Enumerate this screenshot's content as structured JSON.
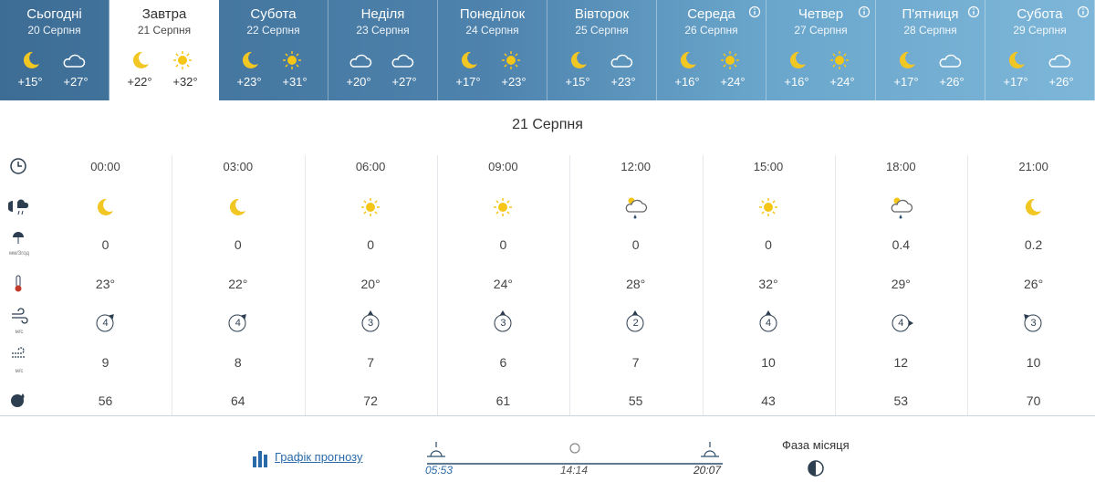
{
  "days": [
    {
      "name": "Сьогодні",
      "date": "20 Серпня",
      "night": "+15°",
      "day": "+27°"
    },
    {
      "name": "Завтра",
      "date": "21 Серпня",
      "night": "+22°",
      "day": "+32°"
    },
    {
      "name": "Субота",
      "date": "22 Серпня",
      "night": "+23°",
      "day": "+31°"
    },
    {
      "name": "Неділя",
      "date": "23 Серпня",
      "night": "+20°",
      "day": "+27°"
    },
    {
      "name": "Понеділок",
      "date": "24 Серпня",
      "night": "+17°",
      "day": "+23°"
    },
    {
      "name": "Вівторок",
      "date": "25 Серпня",
      "night": "+15°",
      "day": "+23°"
    },
    {
      "name": "Середа",
      "date": "26 Серпня",
      "night": "+16°",
      "day": "+24°"
    },
    {
      "name": "Четвер",
      "date": "27 Серпня",
      "night": "+16°",
      "day": "+24°"
    },
    {
      "name": "П'ятниця",
      "date": "28 Серпня",
      "night": "+17°",
      "day": "+26°"
    },
    {
      "name": "Субота",
      "date": "29 Серпня",
      "night": "+17°",
      "day": "+26°"
    }
  ],
  "selected_date": "21 Серпня",
  "row_units": {
    "precipitation": "мм/3год",
    "wind": "м/с",
    "gust": "м/с"
  },
  "hours": [
    {
      "time": "00:00",
      "precipitation": "0",
      "temperature": "23°",
      "wind": "4",
      "gust": "9",
      "humidity": "56"
    },
    {
      "time": "03:00",
      "precipitation": "0",
      "temperature": "22°",
      "wind": "4",
      "gust": "8",
      "humidity": "64"
    },
    {
      "time": "06:00",
      "precipitation": "0",
      "temperature": "20°",
      "wind": "3",
      "gust": "7",
      "humidity": "72"
    },
    {
      "time": "09:00",
      "precipitation": "0",
      "temperature": "24°",
      "wind": "3",
      "gust": "6",
      "humidity": "61"
    },
    {
      "time": "12:00",
      "precipitation": "0",
      "temperature": "28°",
      "wind": "2",
      "gust": "7",
      "humidity": "55"
    },
    {
      "time": "15:00",
      "precipitation": "0",
      "temperature": "32°",
      "wind": "4",
      "gust": "10",
      "humidity": "43"
    },
    {
      "time": "18:00",
      "precipitation": "0.4",
      "temperature": "29°",
      "wind": "4",
      "gust": "12",
      "humidity": "53"
    },
    {
      "time": "21:00",
      "precipitation": "0.2",
      "temperature": "26°",
      "wind": "3",
      "gust": "10",
      "humidity": "70"
    }
  ],
  "footer": {
    "chart_link": "Графік прогнозу",
    "sunrise": "05:53",
    "day_length": "14:14",
    "sunset": "20:07",
    "moon_phase_label": "Фаза місяця"
  }
}
